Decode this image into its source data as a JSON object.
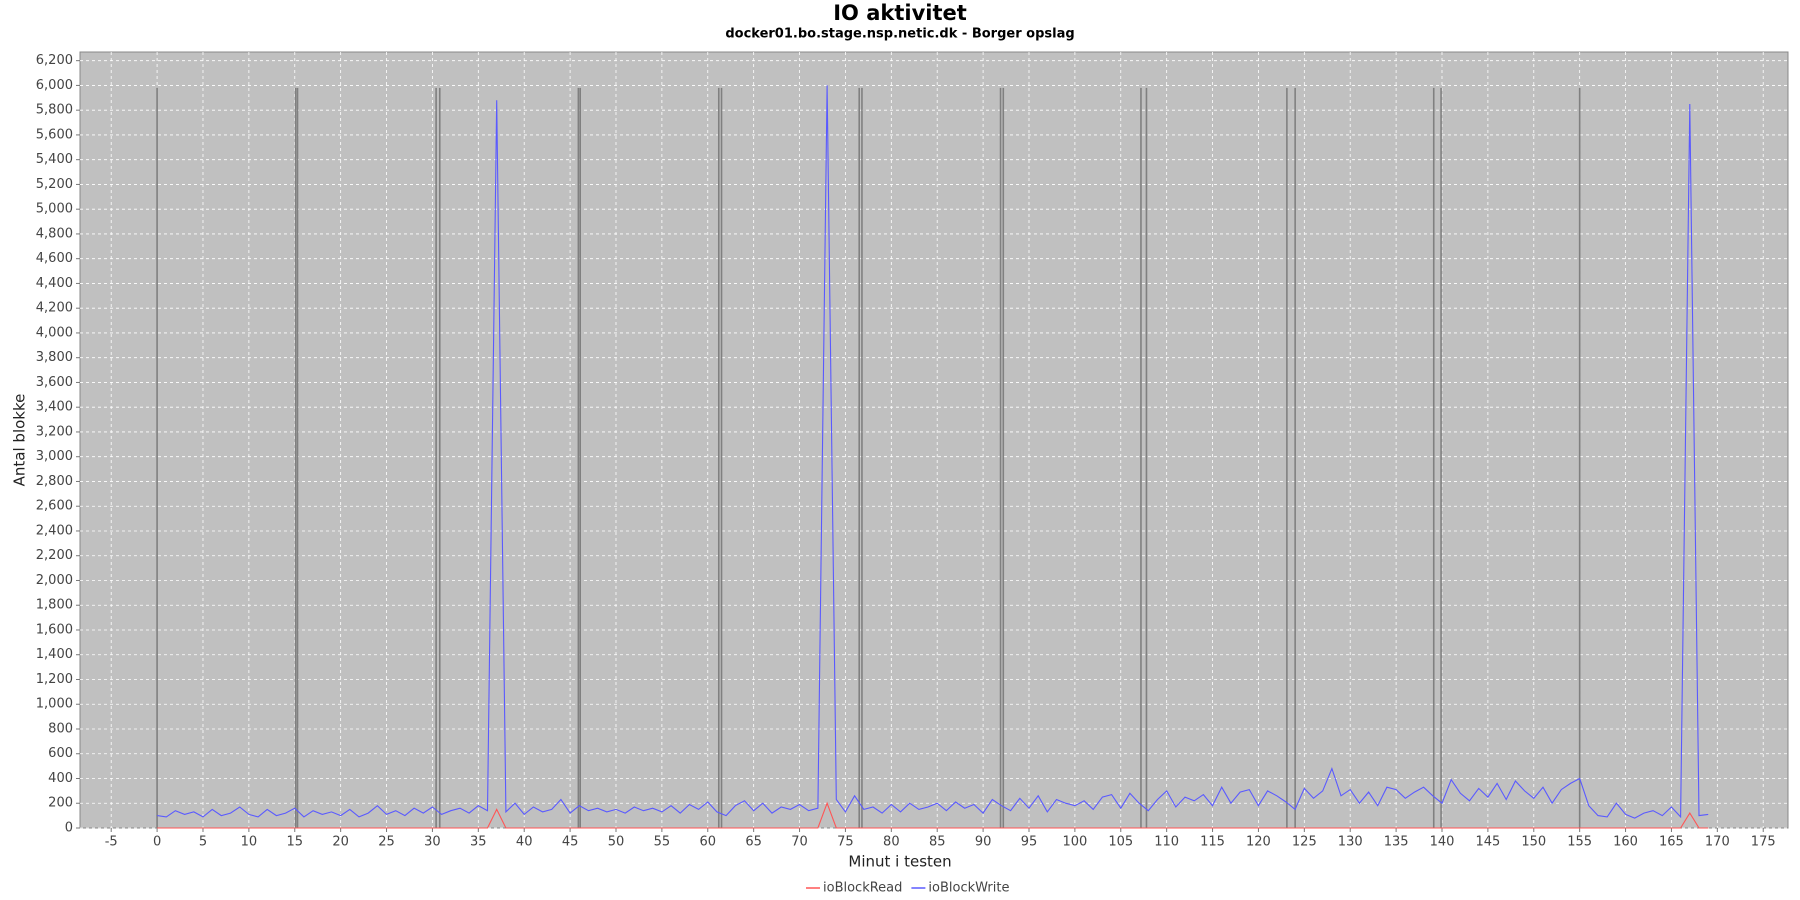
{
  "chart_data": {
    "type": "line",
    "title": "IO aktivitet",
    "subtitle": "docker01.bo.stage.nsp.netic.dk - Borger opslag",
    "x_label": "Minut i testen",
    "y_label": "Antal blokke",
    "xlim": [
      -8.4,
      177.7
    ],
    "ylim": [
      0,
      6270
    ],
    "xticks": [
      -5,
      0,
      5,
      10,
      15,
      20,
      25,
      30,
      35,
      40,
      45,
      50,
      55,
      60,
      65,
      70,
      75,
      80,
      85,
      90,
      95,
      100,
      105,
      110,
      115,
      120,
      125,
      130,
      135,
      140,
      145,
      150,
      155,
      160,
      165,
      170,
      175
    ],
    "yticks": [
      0,
      200,
      400,
      600,
      800,
      {
        "value": 1000,
        "label": "1,000"
      },
      {
        "value": 1200,
        "label": "1,200"
      },
      {
        "value": 1400,
        "label": "1,400"
      },
      {
        "value": 1600,
        "label": "1,600"
      },
      {
        "value": 1800,
        "label": "1,800"
      },
      {
        "value": 2000,
        "label": "2,000"
      },
      {
        "value": 2200,
        "label": "2,200"
      },
      {
        "value": 2400,
        "label": "2,400"
      },
      {
        "value": 2600,
        "label": "2,600"
      },
      {
        "value": 2800,
        "label": "2,800"
      },
      {
        "value": 3000,
        "label": "3,000"
      },
      {
        "value": 3200,
        "label": "3,200"
      },
      {
        "value": 3400,
        "label": "3,400"
      },
      {
        "value": 3600,
        "label": "3,600"
      },
      {
        "value": 3800,
        "label": "3,800"
      },
      {
        "value": 4000,
        "label": "4,000"
      },
      {
        "value": 4200,
        "label": "4,200"
      },
      {
        "value": 4400,
        "label": "4,400"
      },
      {
        "value": 4600,
        "label": "4,600"
      },
      {
        "value": 4800,
        "label": "4,800"
      },
      {
        "value": 5000,
        "label": "5,000"
      },
      {
        "value": 5200,
        "label": "5,200"
      },
      {
        "value": 5400,
        "label": "5,400"
      },
      {
        "value": 5600,
        "label": "5,600"
      },
      {
        "value": 5800,
        "label": "5,800"
      },
      {
        "value": 6000,
        "label": "6,000"
      },
      {
        "value": 6200,
        "label": "6,200"
      }
    ],
    "grid": true,
    "legend": "bottom",
    "background": "#c0c0c0",
    "markers": {
      "color": "#808080",
      "top": 5980,
      "x": [
        0,
        15.1,
        15.3,
        30.4,
        30.8,
        45.9,
        46.1,
        61.2,
        61.5,
        76.5,
        76.8,
        91.9,
        92.2,
        107.2,
        107.8,
        123.1,
        124.0,
        139.1,
        139.9,
        155.0
      ]
    },
    "x": [
      0,
      1,
      2,
      3,
      4,
      5,
      6,
      7,
      8,
      9,
      10,
      11,
      12,
      13,
      14,
      15,
      16,
      17,
      18,
      19,
      20,
      21,
      22,
      23,
      24,
      25,
      26,
      27,
      28,
      29,
      30,
      31,
      32,
      33,
      34,
      35,
      36,
      37,
      38,
      39,
      40,
      41,
      42,
      43,
      44,
      45,
      46,
      47,
      48,
      49,
      50,
      51,
      52,
      53,
      54,
      55,
      56,
      57,
      58,
      59,
      60,
      61,
      62,
      63,
      64,
      65,
      66,
      67,
      68,
      69,
      70,
      71,
      72,
      73,
      74,
      75,
      76,
      77,
      78,
      79,
      80,
      81,
      82,
      83,
      84,
      85,
      86,
      87,
      88,
      89,
      90,
      91,
      92,
      93,
      94,
      95,
      96,
      97,
      98,
      99,
      100,
      101,
      102,
      103,
      104,
      105,
      106,
      107,
      108,
      109,
      110,
      111,
      112,
      113,
      114,
      115,
      116,
      117,
      118,
      119,
      120,
      121,
      122,
      123,
      124,
      125,
      126,
      127,
      128,
      129,
      130,
      131,
      132,
      133,
      134,
      135,
      136,
      137,
      138,
      139,
      140,
      141,
      142,
      143,
      144,
      145,
      146,
      147,
      148,
      149,
      150,
      151,
      152,
      153,
      154,
      155,
      156,
      157,
      158,
      159,
      160,
      161,
      162,
      163,
      164,
      165,
      166,
      167,
      168,
      169
    ],
    "series": [
      {
        "name": "ioBlockRead",
        "color": "#ff5555",
        "values": [
          0,
          0,
          0,
          0,
          0,
          0,
          0,
          0,
          0,
          0,
          0,
          0,
          0,
          0,
          0,
          0,
          0,
          0,
          0,
          0,
          0,
          0,
          0,
          0,
          0,
          0,
          0,
          0,
          0,
          0,
          0,
          0,
          0,
          0,
          0,
          0,
          0,
          150,
          0,
          0,
          0,
          0,
          0,
          0,
          0,
          0,
          0,
          0,
          0,
          0,
          0,
          0,
          0,
          0,
          0,
          0,
          0,
          0,
          0,
          0,
          0,
          0,
          0,
          0,
          0,
          0,
          0,
          0,
          0,
          0,
          0,
          0,
          0,
          200,
          0,
          0,
          0,
          0,
          0,
          0,
          0,
          0,
          0,
          0,
          0,
          0,
          0,
          0,
          0,
          0,
          0,
          0,
          0,
          0,
          0,
          0,
          0,
          0,
          0,
          0,
          0,
          0,
          0,
          0,
          0,
          0,
          0,
          0,
          0,
          0,
          0,
          0,
          0,
          0,
          0,
          0,
          0,
          0,
          0,
          0,
          0,
          0,
          0,
          0,
          0,
          0,
          0,
          0,
          0,
          0,
          0,
          0,
          0,
          0,
          0,
          0,
          0,
          0,
          0,
          0,
          0,
          0,
          0,
          0,
          0,
          0,
          0,
          0,
          0,
          0,
          0,
          0,
          0,
          0,
          0,
          0,
          0,
          0,
          0,
          0,
          0,
          0,
          0,
          0,
          0,
          0,
          0,
          120,
          0,
          0
        ]
      },
      {
        "name": "ioBlockWrite",
        "color": "#5a5aff",
        "values": [
          100,
          90,
          140,
          110,
          130,
          90,
          150,
          100,
          120,
          170,
          110,
          90,
          150,
          100,
          120,
          160,
          90,
          140,
          110,
          130,
          100,
          150,
          90,
          120,
          180,
          110,
          140,
          100,
          160,
          120,
          170,
          110,
          140,
          160,
          120,
          180,
          140,
          5880,
          130,
          200,
          110,
          170,
          130,
          150,
          230,
          120,
          180,
          140,
          160,
          130,
          150,
          120,
          170,
          140,
          160,
          130,
          180,
          120,
          190,
          150,
          210,
          130,
          100,
          180,
          220,
          140,
          200,
          120,
          170,
          150,
          190,
          140,
          160,
          6000,
          230,
          130,
          260,
          150,
          170,
          120,
          190,
          130,
          200,
          150,
          170,
          200,
          140,
          210,
          160,
          190,
          120,
          230,
          180,
          140,
          240,
          160,
          260,
          130,
          230,
          200,
          180,
          220,
          150,
          250,
          270,
          160,
          280,
          200,
          140,
          230,
          300,
          170,
          250,
          220,
          270,
          180,
          330,
          200,
          290,
          310,
          180,
          300,
          260,
          210,
          150,
          320,
          240,
          300,
          480,
          260,
          310,
          200,
          290,
          180,
          330,
          310,
          240,
          290,
          330,
          260,
          200,
          390,
          280,
          220,
          320,
          250,
          360,
          230,
          380,
          300,
          240,
          330,
          200,
          310,
          360,
          400,
          180,
          100,
          90,
          200,
          110,
          80,
          120,
          140,
          100,
          170,
          90,
          5850,
          100,
          110
        ]
      }
    ]
  }
}
